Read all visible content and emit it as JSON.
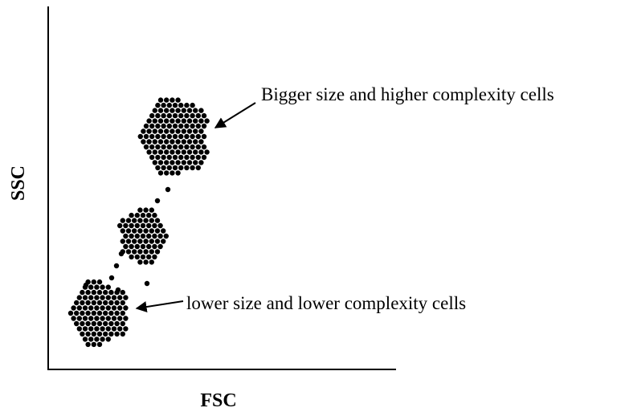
{
  "axes": {
    "x_label": "FSC",
    "y_label": "SSC"
  },
  "annotations": [
    {
      "text": "Bigger size and higher complexity cells"
    },
    {
      "text": "lower size and lower complexity cells"
    }
  ]
}
